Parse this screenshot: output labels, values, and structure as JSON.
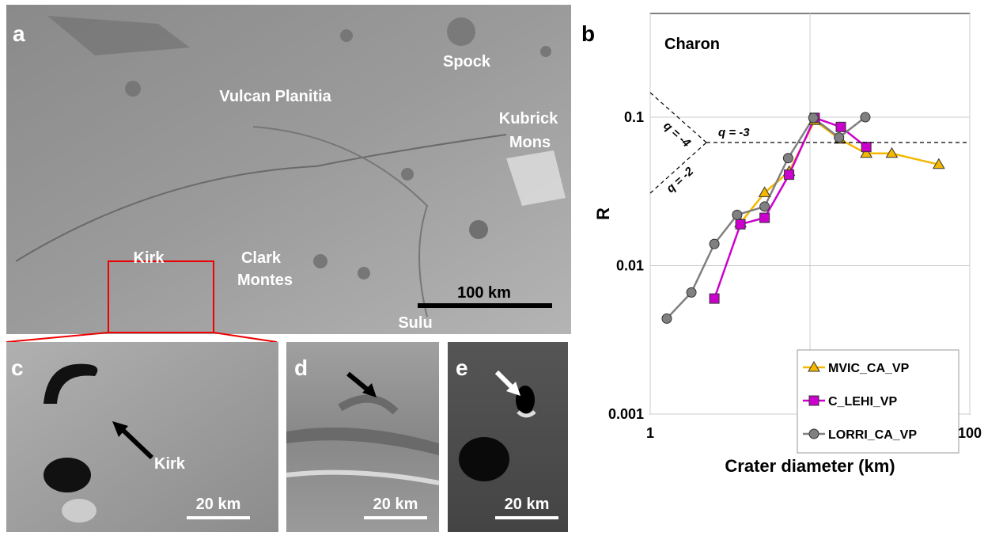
{
  "panels": {
    "a": {
      "letter": "a",
      "labels": [
        "Vulcan Planitia",
        "Spock",
        "Kubrick",
        "Mons",
        "Kirk",
        "Clark",
        "Montes",
        "Sulu"
      ],
      "scale": "100 km"
    },
    "c": {
      "letter": "c",
      "label": "Kirk",
      "scale": "20 km"
    },
    "d": {
      "letter": "d",
      "scale": "20 km"
    },
    "e": {
      "letter": "e",
      "scale": "20 km"
    },
    "b": {
      "letter": "b"
    }
  },
  "chart_data": {
    "type": "line",
    "title": "Charon",
    "xlabel": "Crater diameter (km)",
    "ylabel": "R",
    "log_x": true,
    "log_y": true,
    "xlim": [
      1,
      100
    ],
    "ylim": [
      0.001,
      0.5
    ],
    "xticks": [
      1,
      10,
      100
    ],
    "yticks": [
      0.001,
      0.01,
      0.1
    ],
    "legend": "lower right",
    "annotations": [
      "q = -4",
      "q = -3",
      "q = -2"
    ],
    "series": [
      {
        "name": "MVIC_CA_VP",
        "color": "#f5b800",
        "marker": "triangle",
        "x": [
          3.67,
          5.2,
          7.4,
          10.7,
          15.4,
          22.5,
          32.5,
          64
        ],
        "values": [
          0.0194,
          0.031,
          0.043,
          0.095,
          0.071,
          0.057,
          0.057,
          0.048
        ]
      },
      {
        "name": "C_LEHI_VP",
        "color": "#cc00cc",
        "marker": "square",
        "x": [
          2.52,
          3.67,
          5.2,
          7.4,
          10.7,
          15.6,
          22.5
        ],
        "values": [
          0.006,
          0.019,
          0.021,
          0.041,
          0.099,
          0.086,
          0.063
        ]
      },
      {
        "name": "LORRI_CA_VP",
        "color": "#808080",
        "marker": "circle",
        "x": [
          1.27,
          1.81,
          2.52,
          3.5,
          5.2,
          7.3,
          10.5,
          15.2,
          22.2
        ],
        "values": [
          0.0044,
          0.0066,
          0.014,
          0.022,
          0.025,
          0.053,
          0.099,
          0.073,
          0.1
        ]
      }
    ]
  }
}
